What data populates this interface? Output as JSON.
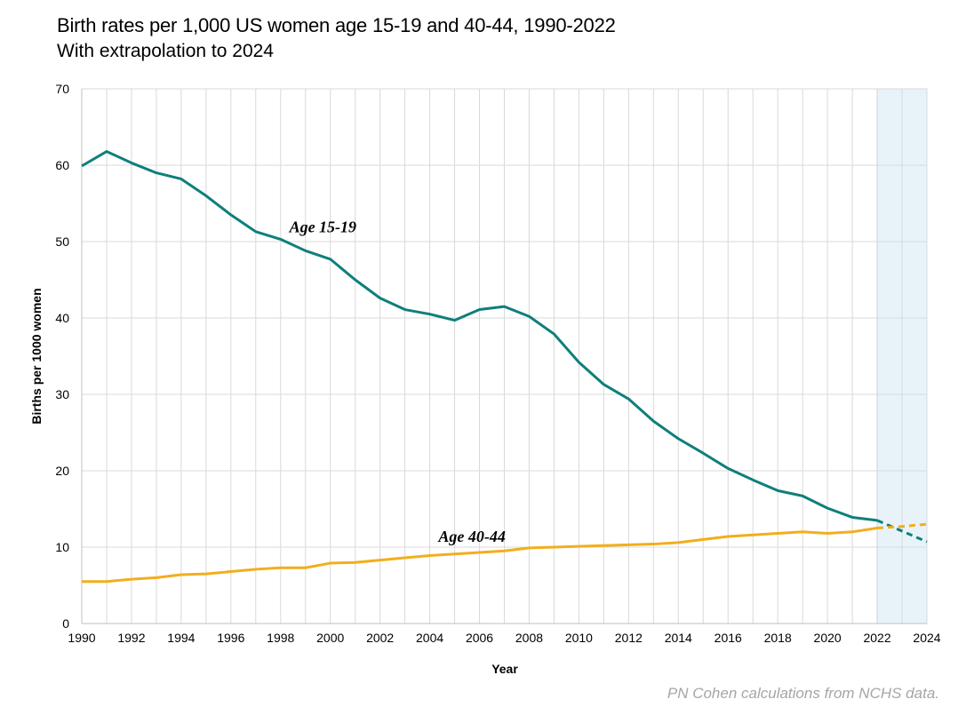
{
  "title": "Birth rates per 1,000 US women age 15-19 and 40-44, 1990-2022",
  "subtitle": "With extrapolation to 2024",
  "source": "PN Cohen calculations from NCHS data.",
  "chart_data": {
    "type": "line",
    "xlabel": "Year",
    "ylabel": "Births per 1000 women",
    "xlim": [
      1990,
      2024
    ],
    "ylim": [
      0,
      70
    ],
    "x_ticks": [
      1990,
      1992,
      1994,
      1996,
      1998,
      2000,
      2002,
      2004,
      2006,
      2008,
      2010,
      2012,
      2014,
      2016,
      2018,
      2020,
      2022,
      2024
    ],
    "y_ticks": [
      0,
      10,
      20,
      30,
      40,
      50,
      60,
      70
    ],
    "grid": true,
    "extrapolation_region": [
      2022,
      2024
    ],
    "extrapolation_color": "#e8f3f9",
    "series": [
      {
        "name": "Age 15-19",
        "color": "#0f7f7a",
        "x": [
          1990,
          1991,
          1992,
          1993,
          1994,
          1995,
          1996,
          1997,
          1998,
          1999,
          2000,
          2001,
          2002,
          2003,
          2004,
          2005,
          2006,
          2007,
          2008,
          2009,
          2010,
          2011,
          2012,
          2013,
          2014,
          2015,
          2016,
          2017,
          2018,
          2019,
          2020,
          2021,
          2022
        ],
        "values": [
          59.9,
          61.8,
          60.3,
          59.0,
          58.2,
          56.0,
          53.5,
          51.3,
          50.3,
          48.8,
          47.7,
          45.0,
          42.6,
          41.1,
          40.5,
          39.7,
          41.1,
          41.5,
          40.2,
          37.9,
          34.2,
          31.3,
          29.4,
          26.5,
          24.2,
          22.3,
          20.3,
          18.8,
          17.4,
          16.7,
          15.1,
          13.9,
          13.5
        ],
        "extrapolated_x": [
          2022,
          2023,
          2024
        ],
        "extrapolated_values": [
          13.5,
          12.1,
          10.7
        ]
      },
      {
        "name": "Age 40-44",
        "color": "#f2ae1c",
        "x": [
          1990,
          1991,
          1992,
          1993,
          1994,
          1995,
          1996,
          1997,
          1998,
          1999,
          2000,
          2001,
          2002,
          2003,
          2004,
          2005,
          2006,
          2007,
          2008,
          2009,
          2010,
          2011,
          2012,
          2013,
          2014,
          2015,
          2016,
          2017,
          2018,
          2019,
          2020,
          2021,
          2022
        ],
        "values": [
          5.5,
          5.5,
          5.8,
          6.0,
          6.4,
          6.5,
          6.8,
          7.1,
          7.3,
          7.3,
          7.9,
          8.0,
          8.3,
          8.6,
          8.9,
          9.1,
          9.3,
          9.5,
          9.9,
          10.0,
          10.1,
          10.2,
          10.3,
          10.4,
          10.6,
          11.0,
          11.4,
          11.6,
          11.8,
          12.0,
          11.8,
          12.0,
          12.5
        ],
        "extrapolated_x": [
          2022,
          2023,
          2024
        ],
        "extrapolated_values": [
          12.5,
          12.7,
          13.0
        ]
      }
    ]
  }
}
